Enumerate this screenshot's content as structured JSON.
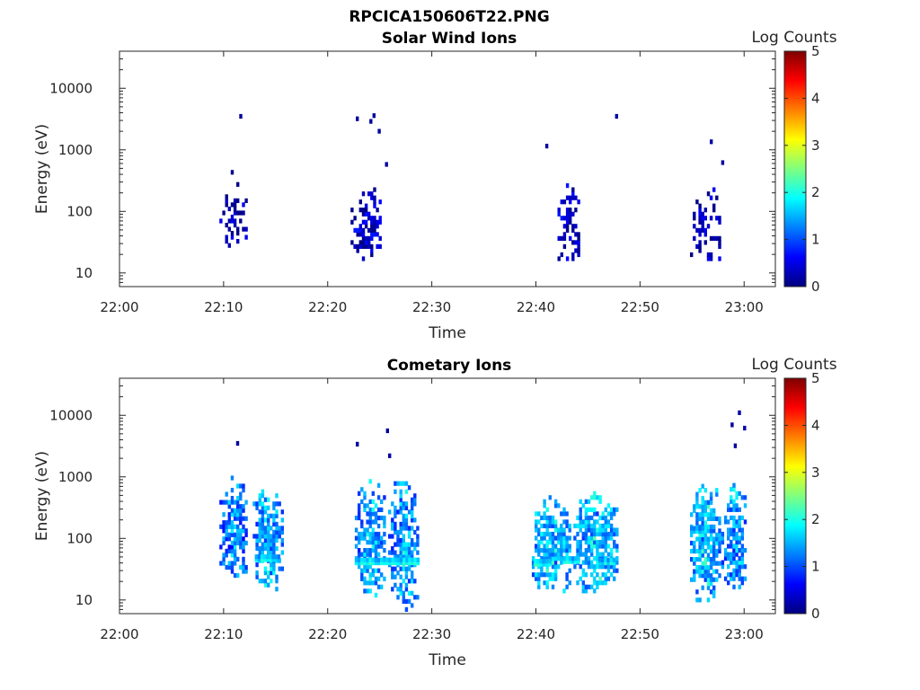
{
  "figure": {
    "title": "RPCICA150606T22.PNG"
  },
  "colormap": [
    "#00007f",
    "#0000ff",
    "#007fff",
    "#00ffff",
    "#7fff7f",
    "#ffff00",
    "#ff7f00",
    "#ff0000",
    "#7f0000"
  ],
  "chart_data": [
    {
      "type": "heatmap",
      "title": "Solar Wind Ions",
      "xlabel": "Time",
      "ylabel": "Energy (eV)",
      "x_ticks": [
        "22:00",
        "22:10",
        "22:20",
        "22:30",
        "22:40",
        "22:50",
        "23:00"
      ],
      "x_range_min": [
        0,
        63
      ],
      "y_ticks": [
        "10",
        "100",
        "1000",
        "10000"
      ],
      "y_scale": "log",
      "y_range": [
        6,
        40000
      ],
      "colorbar": {
        "label": "Log Counts",
        "ticks": [
          "0",
          "1",
          "2",
          "3",
          "4",
          "5"
        ],
        "range": [
          0,
          5
        ]
      },
      "clusters": [
        {
          "t_min": [
            9.6,
            12.2
          ],
          "e_range": [
            28,
            700
          ],
          "count_level": 0.2,
          "density": 0.35
        },
        {
          "t_min": [
            22.2,
            25.0
          ],
          "e_range": [
            17,
            400
          ],
          "count_level": 0.3,
          "density": 0.5
        },
        {
          "t_min": [
            41.8,
            44.2
          ],
          "e_range": [
            17,
            360
          ],
          "count_level": 0.3,
          "density": 0.5
        },
        {
          "t_min": [
            54.8,
            57.8
          ],
          "e_range": [
            17,
            320
          ],
          "count_level": 0.2,
          "density": 0.4
        }
      ],
      "sparse_points": [
        {
          "t_min": 11.5,
          "e": 3500
        },
        {
          "t_min": 22.7,
          "e": 3200
        },
        {
          "t_min": 24.0,
          "e": 2900
        },
        {
          "t_min": 24.3,
          "e": 3600
        },
        {
          "t_min": 24.8,
          "e": 2000
        },
        {
          "t_min": 25.5,
          "e": 580
        },
        {
          "t_min": 40.9,
          "e": 1150
        },
        {
          "t_min": 47.6,
          "e": 3500
        },
        {
          "t_min": 56.7,
          "e": 1350
        },
        {
          "t_min": 57.8,
          "e": 620
        }
      ]
    },
    {
      "type": "heatmap",
      "title": "Cometary Ions",
      "xlabel": "Time",
      "ylabel": "Energy (eV)",
      "x_ticks": [
        "22:00",
        "22:10",
        "22:20",
        "22:30",
        "22:40",
        "22:50",
        "23:00"
      ],
      "x_range_min": [
        0,
        63
      ],
      "y_ticks": [
        "10",
        "100",
        "1000",
        "10000"
      ],
      "y_scale": "log",
      "y_range": [
        6,
        40000
      ],
      "colorbar": {
        "label": "Log Counts",
        "ticks": [
          "0",
          "1",
          "2",
          "3",
          "4",
          "5"
        ],
        "range": [
          0,
          5
        ]
      },
      "clusters": [
        {
          "t_min": [
            9.6,
            12.2
          ],
          "e_range": [
            25,
            1400
          ],
          "count_level": 1.0,
          "density": 0.75
        },
        {
          "t_min": [
            12.8,
            15.6
          ],
          "e_range": [
            15,
            1100
          ],
          "count_level": 1.2,
          "density": 0.75
        },
        {
          "t_min": [
            22.6,
            25.4
          ],
          "e_range": [
            12,
            1300
          ],
          "count_level": 1.1,
          "density": 0.7
        },
        {
          "t_min": [
            25.8,
            28.6
          ],
          "e_range": [
            7,
            1500
          ],
          "count_level": 1.1,
          "density": 0.65
        },
        {
          "t_min": [
            39.6,
            43.2
          ],
          "e_range": [
            14,
            650
          ],
          "count_level": 1.3,
          "density": 0.75
        },
        {
          "t_min": 43.6,
          "t_max_note": "",
          "e_range": [
            14,
            900
          ],
          "count_level": 1.3,
          "density": 0.75,
          "t_end": 47.8
        },
        {
          "t_min": [
            54.8,
            57.6
          ],
          "e_range": [
            10,
            1200
          ],
          "count_level": 1.3,
          "density": 0.75
        },
        {
          "t_min": [
            57.8,
            60.2
          ],
          "e_range": [
            14,
            1000
          ],
          "count_level": 1.1,
          "density": 0.7
        }
      ],
      "band_rows": [
        {
          "t_min": [
            13.0,
            15.4
          ],
          "e": 45,
          "count_level": 1.8
        },
        {
          "t_min": [
            22.6,
            28.6
          ],
          "e": 40,
          "count_level": 1.9
        },
        {
          "t_min": [
            39.8,
            41.2
          ],
          "e": 38,
          "count_level": 1.9
        },
        {
          "t_min": [
            42.6,
            44.0
          ],
          "e": 42,
          "count_level": 1.9
        },
        {
          "t_min": [
            46.0,
            47.4
          ],
          "e": 40,
          "count_level": 1.8
        },
        {
          "t_min": [
            54.8,
            56.0
          ],
          "e": 130,
          "count_level": 1.7
        }
      ],
      "sparse_points": [
        {
          "t_min": 11.2,
          "e": 3500
        },
        {
          "t_min": 22.7,
          "e": 3400
        },
        {
          "t_min": 25.6,
          "e": 5600
        },
        {
          "t_min": 25.8,
          "e": 2200
        },
        {
          "t_min": 58.7,
          "e": 7000
        },
        {
          "t_min": 59.4,
          "e": 11000
        },
        {
          "t_min": 59.9,
          "e": 6200
        },
        {
          "t_min": 59.0,
          "e": 3200
        }
      ]
    }
  ]
}
